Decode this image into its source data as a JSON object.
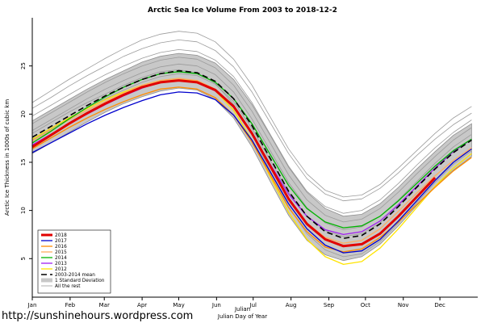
{
  "footer": {
    "url": "http://sunshinehours.wordpress.com"
  },
  "chart_data": {
    "type": "line",
    "title": "Arctic Sea Ice Volume From 2003 to 2018-12-2",
    "ylabel": "Arctic Ice Thickness in 1000s of cubic km",
    "xlabel_line1": "Julian",
    "xlabel_line2": "Julian Day of Year",
    "ylim": [
      1,
      30
    ],
    "yticks": [
      5,
      10,
      15,
      20,
      25
    ],
    "grid": false,
    "legend_position": "bottom-left",
    "months": [
      "Jan",
      "Feb",
      "Mar",
      "Apr",
      "May",
      "Jun",
      "Jul",
      "Aug",
      "Sep",
      "Oct",
      "Nov",
      "Dec"
    ],
    "month_start_days": [
      0,
      31,
      59,
      90,
      120,
      151,
      181,
      212,
      243,
      273,
      304,
      334
    ],
    "days": [
      0,
      15,
      30,
      45,
      60,
      75,
      90,
      105,
      120,
      135,
      150,
      165,
      180,
      195,
      210,
      225,
      240,
      255,
      270,
      285,
      300,
      315,
      330,
      345,
      360
    ],
    "series": [
      {
        "name": "2018",
        "color": "#e10000",
        "width": 3,
        "dash": null,
        "z": 9,
        "values": [
          16.6,
          17.8,
          19.0,
          20.1,
          21.1,
          22.0,
          22.8,
          23.3,
          23.5,
          23.3,
          22.5,
          20.8,
          18.0,
          14.6,
          11.2,
          8.6,
          7.0,
          6.3,
          6.5,
          7.6,
          9.4,
          11.4,
          13.4,
          null,
          null
        ]
      },
      {
        "name": "2017",
        "color": "#0000cd",
        "width": 1.3,
        "dash": null,
        "z": 3,
        "values": [
          16.0,
          17.0,
          18.0,
          19.0,
          19.9,
          20.7,
          21.4,
          22.0,
          22.3,
          22.2,
          21.5,
          19.9,
          17.3,
          14.0,
          10.7,
          8.1,
          6.4,
          5.6,
          5.8,
          7.0,
          8.9,
          11.0,
          13.1,
          15.0,
          16.4
        ]
      },
      {
        "name": "2016",
        "color": "#ff8c00",
        "width": 1.3,
        "dash": null,
        "z": 2,
        "values": [
          16.4,
          17.5,
          18.6,
          19.6,
          20.5,
          21.3,
          22.0,
          22.6,
          22.8,
          22.6,
          21.7,
          19.9,
          17.1,
          13.7,
          10.3,
          7.8,
          6.2,
          5.7,
          6.0,
          7.2,
          8.8,
          10.6,
          12.4,
          14.1,
          15.5
        ]
      },
      {
        "name": "2015",
        "color": "#fdae61",
        "width": 1.3,
        "dash": null,
        "z": 4,
        "values": [
          17.2,
          18.3,
          19.4,
          20.4,
          21.3,
          22.2,
          23.0,
          23.5,
          23.7,
          23.5,
          22.6,
          20.8,
          18.0,
          14.6,
          11.2,
          8.7,
          7.2,
          6.6,
          6.9,
          8.1,
          9.9,
          11.8,
          13.6,
          15.2,
          16.5
        ]
      },
      {
        "name": "2014",
        "color": "#00b400",
        "width": 1.3,
        "dash": null,
        "z": 6,
        "values": [
          17.0,
          18.2,
          19.5,
          20.7,
          21.8,
          22.8,
          23.6,
          24.2,
          24.4,
          24.2,
          23.3,
          21.6,
          19.0,
          15.8,
          12.6,
          10.2,
          8.8,
          8.2,
          8.4,
          9.4,
          11.0,
          12.8,
          14.6,
          16.2,
          17.4
        ]
      },
      {
        "name": "2013",
        "color": "#a020f0",
        "width": 1.3,
        "dash": null,
        "z": 5,
        "values": [
          16.8,
          17.9,
          19.0,
          20.0,
          21.0,
          21.9,
          22.7,
          23.3,
          23.5,
          23.3,
          22.4,
          20.7,
          18.0,
          14.8,
          11.7,
          9.4,
          8.0,
          7.5,
          7.8,
          8.9,
          10.6,
          12.5,
          14.4,
          16.1,
          17.4
        ]
      },
      {
        "name": "2012",
        "color": "#ffe400",
        "width": 1.3,
        "dash": null,
        "z": 1,
        "values": [
          17.4,
          18.5,
          19.6,
          20.6,
          21.5,
          22.3,
          23.0,
          23.5,
          23.7,
          23.4,
          22.4,
          20.4,
          17.3,
          13.5,
          9.8,
          7.0,
          5.2,
          4.4,
          4.7,
          6.1,
          8.1,
          10.3,
          12.5,
          14.4,
          15.9
        ]
      },
      {
        "name": "2003-2014 mean",
        "color": "#000000",
        "width": 1.6,
        "dash": "7,4",
        "z": 8,
        "values": [
          17.6,
          18.7,
          19.8,
          20.9,
          21.9,
          22.8,
          23.6,
          24.2,
          24.5,
          24.3,
          23.4,
          21.6,
          18.8,
          15.4,
          12.0,
          9.4,
          7.8,
          7.1,
          7.4,
          8.6,
          10.4,
          12.4,
          14.3,
          16.0,
          17.3
        ]
      }
    ],
    "band": {
      "name": "1 Standard Deviation",
      "fill": "#c8c8c8",
      "stroke": "#8f8f8f",
      "upper": [
        19.3,
        20.4,
        21.5,
        22.6,
        23.6,
        24.5,
        25.4,
        26.0,
        26.3,
        26.1,
        25.3,
        23.6,
        21.0,
        17.8,
        14.5,
        11.9,
        10.2,
        9.4,
        9.6,
        10.7,
        12.4,
        14.3,
        16.1,
        17.8,
        19.0
      ],
      "lower": [
        15.9,
        17.0,
        18.1,
        19.2,
        20.2,
        21.1,
        21.8,
        22.4,
        22.7,
        22.5,
        21.5,
        19.6,
        16.6,
        13.0,
        9.5,
        6.9,
        5.4,
        4.8,
        5.2,
        6.5,
        8.4,
        10.5,
        12.5,
        14.2,
        15.6
      ]
    },
    "rest": {
      "name": "All the rest",
      "color": "#9b9b9b",
      "lines": [
        [
          20.6,
          21.7,
          22.9,
          24.0,
          25.0,
          26.0,
          26.8,
          27.4,
          27.7,
          27.5,
          26.6,
          24.9,
          22.3,
          19.1,
          15.9,
          13.3,
          11.7,
          11.0,
          11.2,
          12.3,
          13.9,
          15.7,
          17.4,
          18.9,
          20.1
        ],
        [
          19.8,
          20.9,
          22.0,
          23.1,
          24.1,
          25.0,
          25.8,
          26.4,
          26.7,
          26.5,
          25.6,
          23.9,
          21.2,
          17.9,
          14.6,
          12.0,
          10.4,
          9.7,
          10.0,
          11.1,
          12.8,
          14.7,
          16.5,
          18.1,
          19.4
        ],
        [
          19.0,
          20.1,
          21.2,
          22.3,
          23.3,
          24.2,
          25.0,
          25.6,
          25.9,
          25.7,
          24.8,
          23.0,
          20.3,
          17.0,
          13.7,
          11.1,
          9.5,
          8.8,
          9.1,
          10.2,
          11.9,
          13.8,
          15.6,
          17.3,
          18.6
        ],
        [
          18.3,
          19.4,
          20.5,
          21.6,
          22.6,
          23.5,
          24.3,
          24.9,
          25.2,
          25.0,
          24.1,
          22.3,
          19.5,
          16.2,
          12.9,
          10.3,
          8.7,
          8.0,
          8.3,
          9.4,
          11.1,
          13.0,
          14.9,
          16.6,
          17.9
        ],
        [
          21.2,
          22.4,
          23.6,
          24.7,
          25.8,
          26.8,
          27.7,
          28.3,
          28.6,
          28.4,
          27.5,
          25.7,
          23.0,
          19.7,
          16.4,
          13.8,
          12.1,
          11.4,
          11.6,
          12.7,
          14.4,
          16.2,
          18.0,
          19.6,
          20.8
        ],
        [
          17.3,
          18.4,
          19.5,
          20.6,
          21.6,
          22.5,
          23.3,
          23.9,
          24.2,
          24.0,
          23.1,
          21.3,
          18.5,
          15.2,
          11.9,
          9.4,
          7.9,
          7.3,
          7.6,
          8.7,
          10.5,
          12.5,
          14.4,
          16.1,
          17.4
        ],
        [
          18.0,
          19.1,
          20.2,
          21.2,
          22.1,
          23.0,
          23.8,
          24.4,
          24.6,
          24.3,
          23.2,
          21.0,
          17.9,
          14.1,
          10.4,
          7.6,
          5.9,
          5.2,
          5.5,
          6.8,
          8.7,
          10.8,
          12.9,
          14.8,
          16.2
        ]
      ]
    }
  }
}
